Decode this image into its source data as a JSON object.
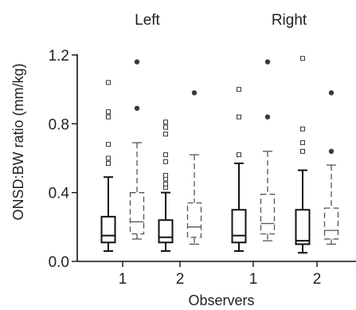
{
  "chart_data": {
    "type": "box",
    "title": "",
    "panels": [
      "Left",
      "Right"
    ],
    "xlabel": "Observers",
    "ylabel": "ONSD:BW ratio (mm/kg)",
    "ylim": [
      0.0,
      1.2
    ],
    "yticks": [
      0.0,
      0.4,
      0.8,
      1.2
    ],
    "ytick_labels": [
      "0.0",
      "0.4",
      "0.8",
      "1.2"
    ],
    "categories": [
      "1",
      "2",
      "1",
      "2"
    ],
    "boxes": [
      {
        "panel": "Left",
        "observer": "1",
        "style": "solid",
        "whisker_low": 0.06,
        "q1": 0.11,
        "median": 0.15,
        "q3": 0.26,
        "whisker_high": 0.49,
        "outliers": [
          0.57,
          0.6,
          0.68,
          0.84,
          0.87,
          1.04
        ],
        "outlier_marker": "open-square"
      },
      {
        "panel": "Left",
        "observer": "1",
        "style": "dashed",
        "whisker_low": 0.13,
        "q1": 0.16,
        "median": 0.23,
        "q3": 0.4,
        "whisker_high": 0.69,
        "outliers": [
          0.89,
          1.16
        ],
        "outlier_marker": "filled-circle"
      },
      {
        "panel": "Left",
        "observer": "2",
        "style": "solid",
        "whisker_low": 0.06,
        "q1": 0.11,
        "median": 0.14,
        "q3": 0.24,
        "whisker_high": 0.4,
        "outliers": [
          0.43,
          0.45,
          0.48,
          0.5,
          0.58,
          0.62,
          0.74,
          0.78,
          0.81
        ],
        "outlier_marker": "open-square"
      },
      {
        "panel": "Left",
        "observer": "2",
        "style": "dashed",
        "whisker_low": 0.1,
        "q1": 0.14,
        "median": 0.2,
        "q3": 0.34,
        "whisker_high": 0.62,
        "outliers": [
          0.98
        ],
        "outlier_marker": "filled-circle"
      },
      {
        "panel": "Right",
        "observer": "1",
        "style": "solid",
        "whisker_low": 0.06,
        "q1": 0.11,
        "median": 0.15,
        "q3": 0.3,
        "whisker_high": 0.57,
        "outliers": [
          0.62,
          0.84,
          1.0
        ],
        "outlier_marker": "open-square"
      },
      {
        "panel": "Right",
        "observer": "1",
        "style": "dashed",
        "whisker_low": 0.12,
        "q1": 0.16,
        "median": 0.22,
        "q3": 0.39,
        "whisker_high": 0.64,
        "outliers": [
          0.84,
          1.16
        ],
        "outlier_marker": "filled-circle"
      },
      {
        "panel": "Right",
        "observer": "2",
        "style": "solid",
        "whisker_low": 0.05,
        "q1": 0.1,
        "median": 0.12,
        "q3": 0.3,
        "whisker_high": 0.53,
        "outliers": [
          0.64,
          0.69,
          0.77,
          1.18
        ],
        "outlier_marker": "open-square"
      },
      {
        "panel": "Right",
        "observer": "2",
        "style": "dashed",
        "whisker_low": 0.1,
        "q1": 0.13,
        "median": 0.18,
        "q3": 0.31,
        "whisker_high": 0.56,
        "outliers": [
          0.64,
          0.98
        ],
        "outlier_marker": "filled-circle"
      }
    ]
  }
}
